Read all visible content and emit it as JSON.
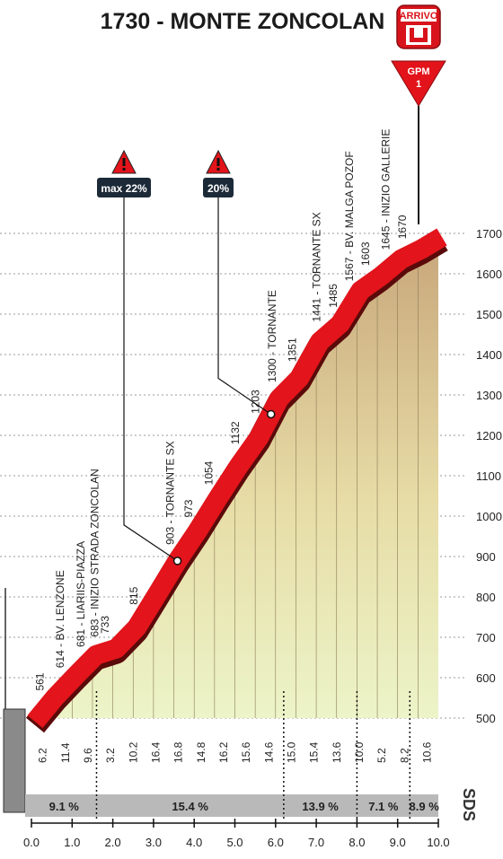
{
  "chart_data": {
    "type": "area",
    "title": "1730 - MONTE ZONCOLAN",
    "arrival_badge": "ARRIVO",
    "gpm_badge": {
      "label": "GPM",
      "category": "1"
    },
    "brand": "SDS",
    "x_range": [
      0,
      10
    ],
    "x_ticks": [
      "0.0",
      "1.0",
      "2.0",
      "3.0",
      "4.0",
      "5.0",
      "6.0",
      "7.0",
      "8.0",
      "9.0",
      "10.0"
    ],
    "y_range": [
      500,
      1700
    ],
    "y_ticks": [
      "500",
      "600",
      "700",
      "800",
      "900",
      "1000",
      "1100",
      "1200",
      "1300",
      "1400",
      "1500",
      "1600",
      "1700"
    ],
    "profile": [
      {
        "x": 0.0,
        "y": 500
      },
      {
        "x": 0.5,
        "y": 561
      },
      {
        "x": 1.0,
        "y": 614
      },
      {
        "x": 1.5,
        "y": 665
      },
      {
        "x": 2.0,
        "y": 681
      },
      {
        "x": 2.5,
        "y": 733
      },
      {
        "x": 3.0,
        "y": 815
      },
      {
        "x": 3.5,
        "y": 898
      },
      {
        "x": 4.0,
        "y": 973
      },
      {
        "x": 4.5,
        "y": 1054
      },
      {
        "x": 5.0,
        "y": 1132
      },
      {
        "x": 5.5,
        "y": 1203
      },
      {
        "x": 6.0,
        "y": 1300
      },
      {
        "x": 6.5,
        "y": 1351
      },
      {
        "x": 7.0,
        "y": 1441
      },
      {
        "x": 7.5,
        "y": 1485
      },
      {
        "x": 8.0,
        "y": 1567
      },
      {
        "x": 8.5,
        "y": 1603
      },
      {
        "x": 9.0,
        "y": 1645
      },
      {
        "x": 9.5,
        "y": 1670
      },
      {
        "x": 10.0,
        "y": 1700
      }
    ],
    "gradients": [
      "6.2",
      "11.4",
      "9.6",
      "3.2",
      "10.2",
      "16.4",
      "16.8",
      "14.8",
      "16.2",
      "15.6",
      "14.6",
      "15.0",
      "15.4",
      "13.6",
      "10.0",
      "5.2",
      "8.2",
      "10.6"
    ],
    "sections": [
      {
        "label": "9.1 %",
        "from": 0.0,
        "to": 1.6
      },
      {
        "label": "15.4 %",
        "from": 1.6,
        "to": 6.2
      },
      {
        "label": "13.9 %",
        "from": 6.2,
        "to": 8.0
      },
      {
        "label": "7.1 %",
        "from": 8.0,
        "to": 9.3
      },
      {
        "label": "8.9 %",
        "from": 9.3,
        "to": 10.0
      }
    ],
    "waypoints": [
      {
        "x": 0.3,
        "label": "561"
      },
      {
        "x": 0.8,
        "label": "614 - BV. LENZONE"
      },
      {
        "x": 1.3,
        "label": "681 - LIARIIS-PIAZZA"
      },
      {
        "x": 1.65,
        "label": "683 - INIZIO STRADA ZONCOLAN"
      },
      {
        "x": 1.9,
        "label": "733"
      },
      {
        "x": 2.6,
        "label": "815"
      },
      {
        "x": 3.5,
        "label": "903 - TORNANTE SX"
      },
      {
        "x": 3.95,
        "label": "973"
      },
      {
        "x": 4.45,
        "label": "1054"
      },
      {
        "x": 5.1,
        "label": "1132"
      },
      {
        "x": 5.6,
        "label": "1203"
      },
      {
        "x": 6.0,
        "label": "1300 - TORNANTE"
      },
      {
        "x": 6.5,
        "label": "1351"
      },
      {
        "x": 7.1,
        "label": "1441 - TORNANTE SX"
      },
      {
        "x": 7.5,
        "label": "1485"
      },
      {
        "x": 7.9,
        "label": "1567 - BV. MALGA POZOF"
      },
      {
        "x": 8.3,
        "label": "1603"
      },
      {
        "x": 8.8,
        "label": "1645 - INIZIO GALLERIE"
      },
      {
        "x": 9.2,
        "label": "1670"
      }
    ],
    "max_gradient_markers": [
      {
        "label": "max 22%",
        "km": 3.5
      },
      {
        "label": "20%",
        "km": 5.8
      }
    ]
  }
}
